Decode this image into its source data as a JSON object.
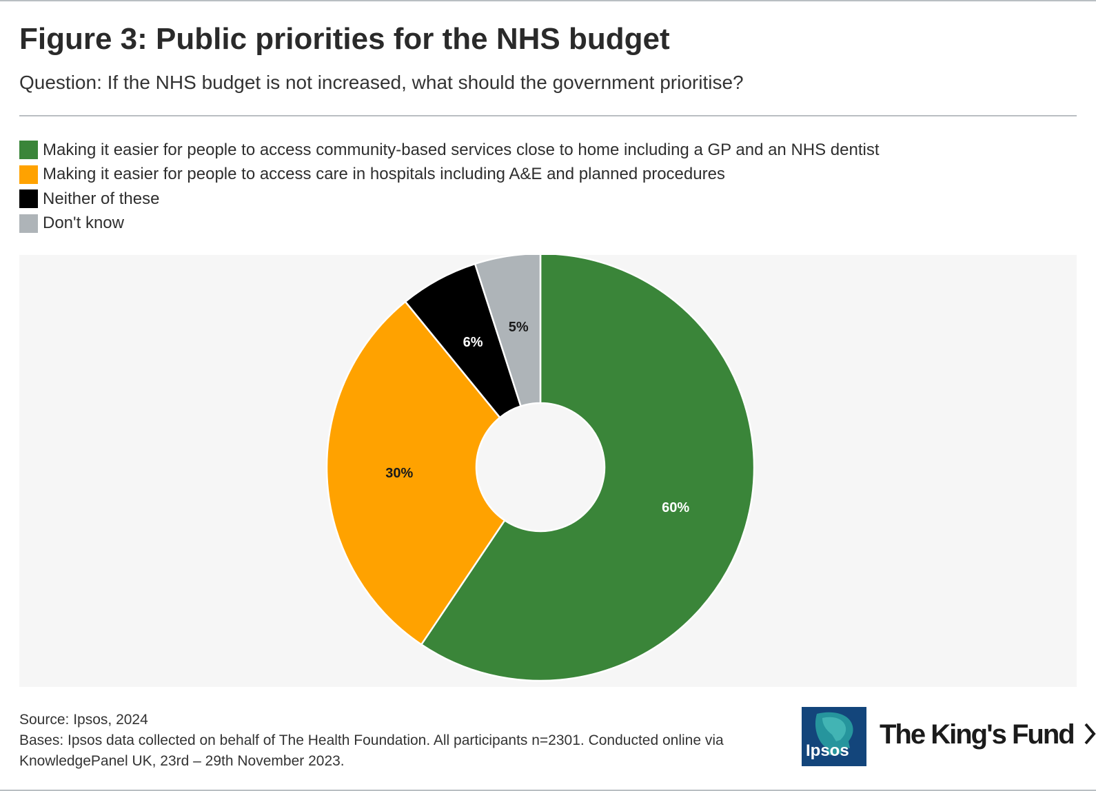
{
  "header": {
    "title": "Figure 3: Public priorities for the NHS budget",
    "subtitle": "Question: If the NHS budget is not increased, what should the government prioritise?"
  },
  "chart_data": {
    "type": "pie",
    "donut": true,
    "legend_position": "top-left",
    "slices": [
      {
        "name": "Making it easier for people to access community-based services close to home including a GP and an NHS dentist",
        "value": 60,
        "label": "60%",
        "color": "#3a8539",
        "label_color": "#ffffff"
      },
      {
        "name": "Making it easier for people to access care in hospitals including A&E and planned procedures",
        "value": 30,
        "label": "30%",
        "color": "#ffa200",
        "label_color": "#1a1a1a"
      },
      {
        "name": "Neither of these",
        "value": 6,
        "label": "6%",
        "color": "#000000",
        "label_color": "#ffffff"
      },
      {
        "name": "Don't know",
        "value": 5,
        "label": "5%",
        "color": "#aeb4b8",
        "label_color": "#1a1a1a"
      }
    ]
  },
  "footer": {
    "source": "Source: Ipsos, 2024",
    "bases": "Bases: Ipsos data collected on behalf of The Health Foundation. All participants n=2301. Conducted online via KnowledgePanel UK, 23rd – 29th November 2023."
  },
  "logos": {
    "ipsos": "Ipsos",
    "kings_fund": "The King's Fund",
    "ipsos_color": "#13457b",
    "ipsos_icon": "ipsos-head-silhouette-icon",
    "kings_fund_icon": "chevron-right-icon"
  }
}
